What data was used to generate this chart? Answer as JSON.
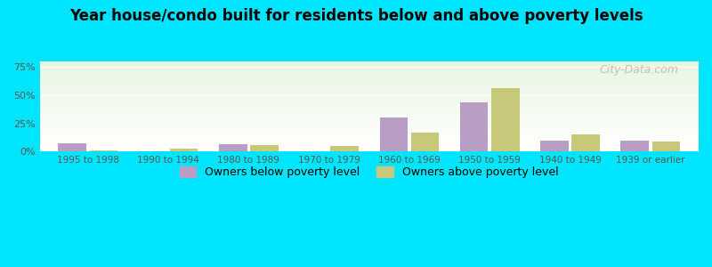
{
  "title": "Year house/condo built for residents below and above poverty levels",
  "categories": [
    "1995 to 1998",
    "1990 to 1994",
    "1980 to 1989",
    "1970 to 1979",
    "1960 to 1969",
    "1950 to 1959",
    "1940 to 1949",
    "1939 or earlier"
  ],
  "below_poverty": [
    7.5,
    0.5,
    6.5,
    0.5,
    30.0,
    44.0,
    10.0,
    10.0
  ],
  "above_poverty": [
    0.8,
    2.5,
    5.5,
    5.0,
    17.0,
    56.0,
    15.0,
    8.5
  ],
  "below_color": "#b89ec4",
  "above_color": "#c8c87a",
  "yticks": [
    0,
    25,
    50,
    75
  ],
  "ylim": [
    0,
    80
  ],
  "background_top": "#e8f5e0",
  "background_bottom": "#ffffff",
  "outer_bg": "#00e5ff",
  "legend_below": "Owners below poverty level",
  "legend_above": "Owners above poverty level",
  "watermark": "City-Data.com"
}
